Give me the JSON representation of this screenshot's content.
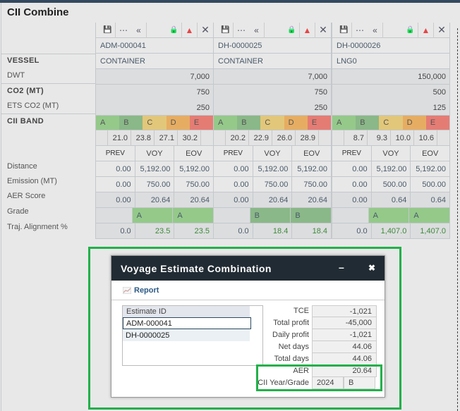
{
  "title": "CII Combine",
  "labels": {
    "vessel": "VESSEL",
    "dwt": "DWT",
    "co2": "CO2 (MT)",
    "ets": "ETS CO2 (MT)",
    "band": "CII BAND",
    "distance": "Distance",
    "emission": "Emission (MT)",
    "aer": "AER Score",
    "grade": "Grade",
    "traj": "Traj. Alignment %"
  },
  "headers": [
    "PREV",
    "VOY",
    "EOV"
  ],
  "band_letters": [
    "A",
    "B",
    "C",
    "D",
    "E"
  ],
  "colors": {
    "A": "#94c98a",
    "B": "#8ab888",
    "C": "#e2c77a",
    "D": "#e6ad62",
    "E": "#e57c74",
    "grade_A": "#94c98a",
    "grade_B": "#8ab888",
    "traj": "#3d8a3a",
    "accent": "#22b04a"
  },
  "columns": [
    {
      "id": "ADM-000041",
      "vessel": "CONTAINER",
      "dwt": "7,000",
      "co2": "750",
      "ets": "250",
      "thresholds": [
        "21.0",
        "23.8",
        "27.1",
        "30.2"
      ],
      "distance": [
        "0.00",
        "5,192.00",
        "5,192.00"
      ],
      "emission": [
        "0.00",
        "750.00",
        "750.00"
      ],
      "aer": [
        "0.00",
        "20.64",
        "20.64"
      ],
      "grade": [
        "",
        "A",
        "A"
      ],
      "traj": [
        "0.0",
        "23.5",
        "23.5"
      ]
    },
    {
      "id": "DH-0000025",
      "vessel": "CONTAINER",
      "dwt": "7,000",
      "co2": "750",
      "ets": "250",
      "thresholds": [
        "20.2",
        "22.9",
        "26.0",
        "28.9"
      ],
      "distance": [
        "0.00",
        "5,192.00",
        "5,192.00"
      ],
      "emission": [
        "0.00",
        "750.00",
        "750.00"
      ],
      "aer": [
        "0.00",
        "20.64",
        "20.64"
      ],
      "grade": [
        "",
        "B",
        "B"
      ],
      "traj": [
        "0.0",
        "18.4",
        "18.4"
      ]
    },
    {
      "id": "DH-0000026",
      "vessel": "LNG0",
      "dwt": "150,000",
      "co2": "500",
      "ets": "125",
      "thresholds": [
        "8.7",
        "9.3",
        "10.0",
        "10.6"
      ],
      "distance": [
        "0.00",
        "5,192.00",
        "5,192.00"
      ],
      "emission": [
        "0.00",
        "500.00",
        "500.00"
      ],
      "aer": [
        "0.00",
        "0.64",
        "0.64"
      ],
      "grade": [
        "",
        "A",
        "A"
      ],
      "traj": [
        "0.0",
        "1,407.0",
        "1,407.0"
      ]
    }
  ],
  "toolbar_icons": [
    "save-icon",
    "more-icon",
    "collapse-icon",
    "lock-icon",
    "warning-icon",
    "close-icon"
  ],
  "modal": {
    "title": "Voyage Estimate Combination",
    "minimize": "–",
    "close": "✖",
    "report": "Report",
    "list_header": "Estimate ID",
    "items": [
      "ADM-000041",
      "DH-0000025"
    ],
    "stats": [
      {
        "k": "TCE",
        "v": "-1,021"
      },
      {
        "k": "Total profit",
        "v": "-45,000"
      },
      {
        "k": "Daily profit",
        "v": "-1,021"
      },
      {
        "k": "Net days",
        "v": "44.06"
      },
      {
        "k": "Total days",
        "v": "44.06"
      },
      {
        "k": "AER",
        "v": "20.64"
      }
    ],
    "cii_label": "CII Year/Grade",
    "cii_year": "2024",
    "cii_grade": "B"
  }
}
